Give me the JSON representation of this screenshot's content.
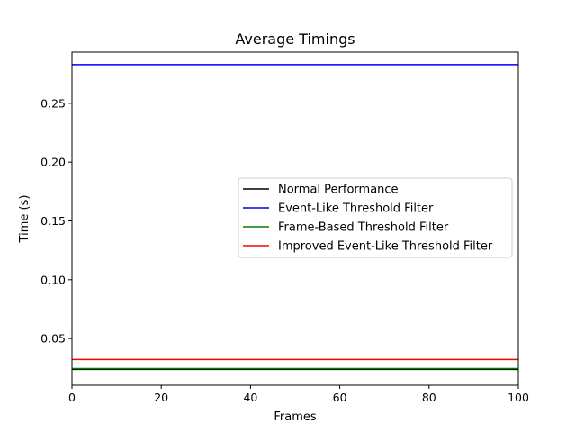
{
  "chart_data": {
    "type": "line",
    "title": "Average Timings",
    "xlabel": "Frames",
    "ylabel": "Time (s)",
    "xlim": [
      0,
      100
    ],
    "ylim": [
      0.0103,
      0.2935
    ],
    "xticks": [
      0,
      20,
      40,
      60,
      80,
      100
    ],
    "yticks": [
      0.05,
      0.1,
      0.15,
      0.2,
      0.25
    ],
    "ytick_labels": [
      "0.05",
      "0.10",
      "0.15",
      "0.20",
      "0.25"
    ],
    "grid": false,
    "legend_position": "center-right",
    "x": [
      0,
      100
    ],
    "series": [
      {
        "name": "Normal Performance",
        "color": "#000000",
        "values": [
          0.0238,
          0.0238
        ]
      },
      {
        "name": "Event-Like Threshold Filter",
        "color": "#0000ff",
        "values": [
          0.2829,
          0.2829
        ]
      },
      {
        "name": "Frame-Based Threshold Filter",
        "color": "#008000",
        "values": [
          0.0245,
          0.0245
        ]
      },
      {
        "name": "Improved Event-Like Threshold Filter",
        "color": "#ff0000",
        "values": [
          0.0322,
          0.0322
        ]
      }
    ]
  }
}
